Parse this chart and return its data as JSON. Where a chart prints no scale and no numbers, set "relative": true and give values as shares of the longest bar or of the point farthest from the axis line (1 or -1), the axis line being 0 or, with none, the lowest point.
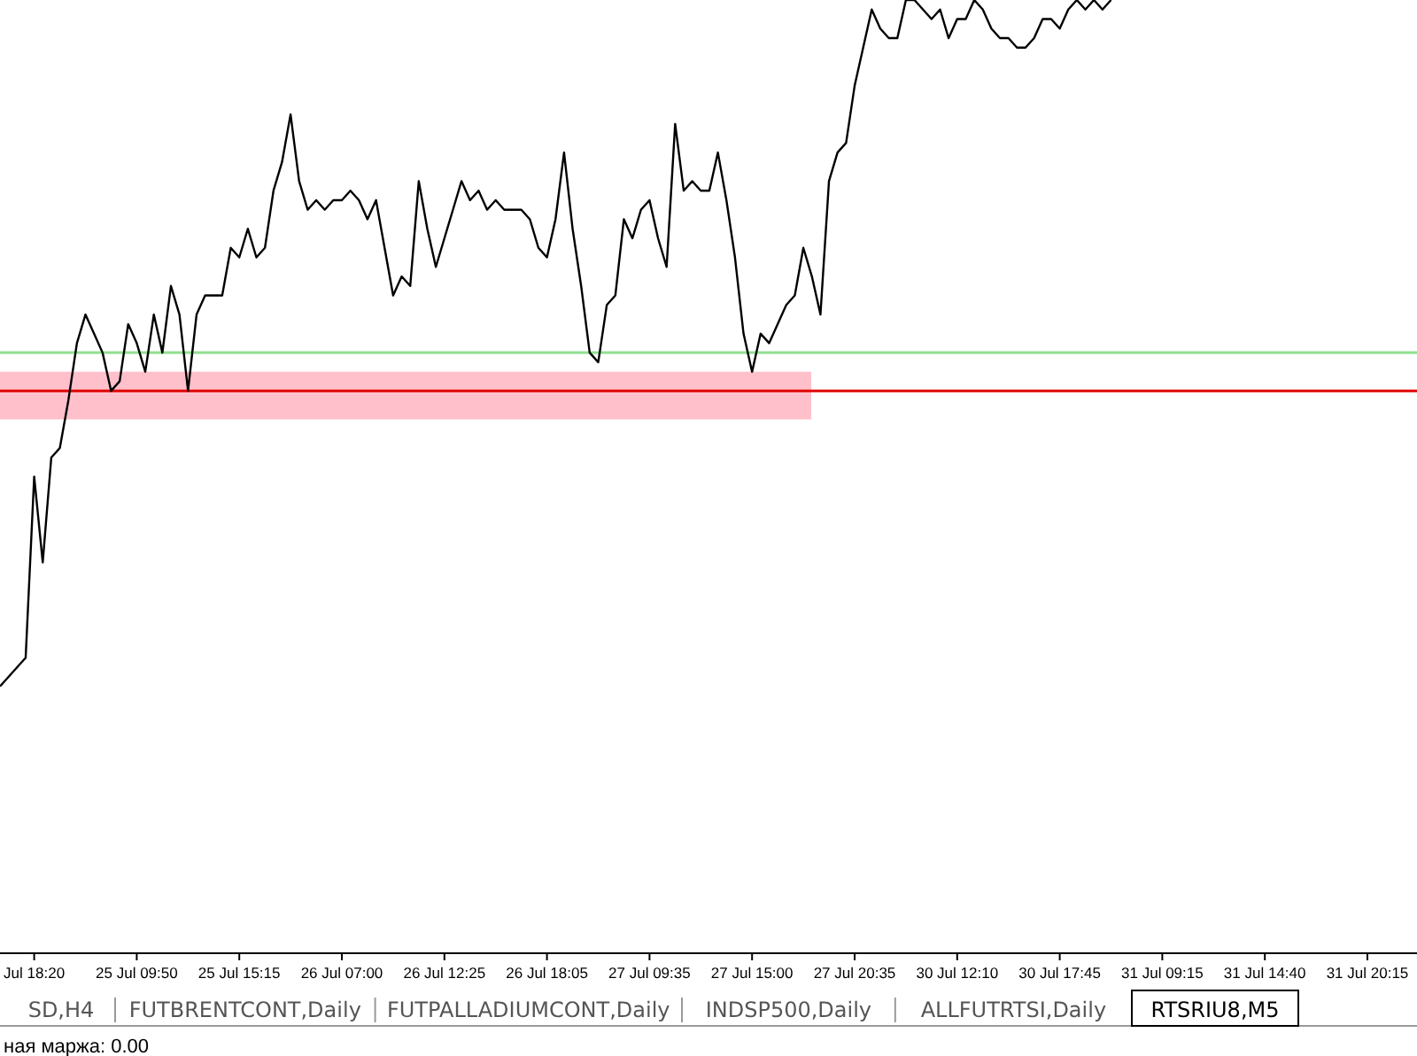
{
  "chart_data": {
    "type": "line",
    "relative": true,
    "categories": [
      null,
      null,
      null,
      null,
      "Jul 18:20",
      null,
      null,
      null,
      null,
      null,
      null,
      null,
      null,
      null,
      null,
      null,
      "25 Jul 09:50",
      null,
      null,
      null,
      null,
      null,
      null,
      null,
      null,
      null,
      null,
      null,
      "25 Jul 15:15",
      null,
      null,
      null,
      null,
      null,
      null,
      null,
      null,
      null,
      null,
      null,
      "26 Jul 07:00",
      null,
      null,
      null,
      null,
      null,
      null,
      null,
      null,
      null,
      null,
      null,
      "26 Jul 12:25",
      null,
      null,
      null,
      null,
      null,
      null,
      null,
      null,
      null,
      null,
      null,
      "26 Jul 18:05",
      null,
      null,
      null,
      null,
      null,
      null,
      null,
      null,
      null,
      null,
      null,
      "27 Jul 09:35",
      null,
      null,
      null,
      null,
      null,
      null,
      null,
      null,
      null,
      null,
      null,
      "27 Jul 15:00",
      null,
      null,
      null,
      null,
      null,
      null,
      null,
      null,
      null,
      null,
      null,
      "27 Jul 20:35",
      null,
      null,
      null,
      null,
      null,
      null,
      null,
      null,
      null,
      null,
      null,
      "30 Jul 12:10",
      null,
      null,
      null,
      null,
      null,
      null,
      null,
      null,
      null,
      null,
      null,
      "30 Jul 17:45",
      null,
      null,
      null,
      null,
      null,
      null,
      null,
      null,
      null,
      null,
      null,
      "31 Jul 09:15",
      null,
      null,
      null,
      null,
      null,
      null,
      null,
      null,
      null,
      null,
      null,
      "31 Jul 14:40",
      null,
      null,
      null,
      null,
      null,
      null,
      null,
      null,
      null,
      null,
      null,
      "31 Jul 20:15",
      null,
      null,
      null,
      null,
      null
    ],
    "series": [
      {
        "color": "#000000",
        "values": [
          0.28,
          0.29,
          0.3,
          0.31,
          0.5,
          0.41,
          0.52,
          0.53,
          0.58,
          0.64,
          0.67,
          0.65,
          0.63,
          0.59,
          0.6,
          0.66,
          0.64,
          0.61,
          0.67,
          0.63,
          0.7,
          0.67,
          0.59,
          0.67,
          0.69,
          0.69,
          0.69,
          0.74,
          0.73,
          0.76,
          0.73,
          0.74,
          0.8,
          0.83,
          0.88,
          0.81,
          0.78,
          0.79,
          0.78,
          0.79,
          0.79,
          0.8,
          0.79,
          0.77,
          0.79,
          0.74,
          0.69,
          0.71,
          0.7,
          0.81,
          0.76,
          0.72,
          0.75,
          0.78,
          0.81,
          0.79,
          0.8,
          0.78,
          0.79,
          0.78,
          0.78,
          0.78,
          0.77,
          0.74,
          0.73,
          0.77,
          0.84,
          0.76,
          0.7,
          0.63,
          0.62,
          0.68,
          0.69,
          0.77,
          0.75,
          0.78,
          0.79,
          0.75,
          0.72,
          0.87,
          0.8,
          0.81,
          0.8,
          0.8,
          0.84,
          0.79,
          0.73,
          0.65,
          0.61,
          0.65,
          0.64,
          0.66,
          0.68,
          0.69,
          0.74,
          0.71,
          0.67,
          0.81,
          0.84,
          0.85,
          0.91,
          0.95,
          0.99,
          0.97,
          0.96,
          0.96,
          1.0,
          1.0,
          0.99,
          0.98,
          0.99,
          0.96,
          0.98,
          0.98,
          1.0,
          0.99,
          0.97,
          0.96,
          0.96,
          0.95,
          0.95,
          0.96,
          0.98,
          0.98,
          0.97,
          0.99,
          1.0,
          0.99,
          1.0,
          0.99,
          1.0,
          null,
          null,
          null,
          null,
          null,
          null,
          null,
          null,
          null,
          null,
          null,
          null,
          null,
          null,
          null,
          null,
          null,
          null,
          null,
          null,
          null,
          null,
          null,
          null,
          null,
          null,
          null,
          null,
          null,
          null,
          null,
          null,
          null,
          null,
          null
        ]
      }
    ],
    "ref_lines": [
      {
        "axis": "y",
        "value": 0.63,
        "color": "#90e090"
      },
      {
        "axis": "y",
        "value": 0.59,
        "color": "#e00000"
      }
    ],
    "bands": [
      {
        "axis": "y",
        "from": 0.56,
        "to": 0.61,
        "color": "#ffc0cb"
      }
    ],
    "annotations": [
      "SD,H4",
      "FUTBRENTCONT,Daily",
      "FUTPALLADIUMCONT,Daily",
      "INDSP500,Daily",
      "ALLFUTRTSI,Daily",
      "RTSRIU8,M5",
      "ная маржа: 0.00"
    ]
  }
}
